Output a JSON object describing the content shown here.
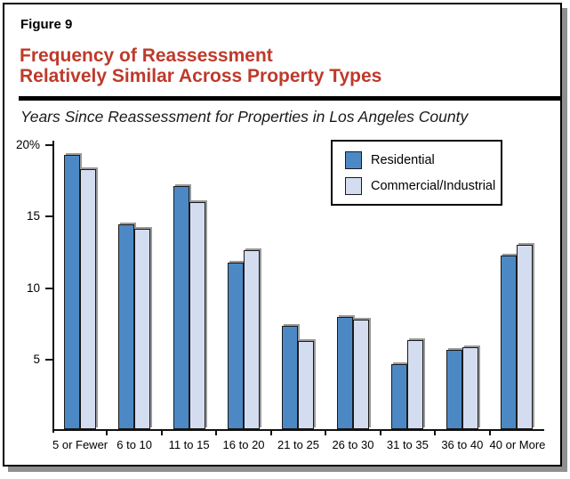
{
  "figure": {
    "label": "Figure 9",
    "title_line1": "Frequency of Reassessment",
    "title_line2": "Relatively Similar Across Property Types",
    "subtitle": "Years Since Reassessment for Properties in Los Angeles County"
  },
  "colors": {
    "title_red": "#BE3A2B",
    "residential_bar": "#4C89C4",
    "commercial_bar": "#D4DDF0",
    "bar_border": "#1a1a1a",
    "bar_shadow": "#9a9a9a",
    "frame_shadow": "#8f8f8f",
    "axis": "#111111"
  },
  "chart_data": {
    "type": "bar",
    "title": "Years Since Reassessment for Properties in Los Angeles County",
    "xlabel": "",
    "ylabel": "",
    "ylim": [
      0,
      20
    ],
    "grid": false,
    "legend_position": "top-right",
    "y_ticks": [
      {
        "value": 20,
        "label": "20%"
      },
      {
        "value": 15,
        "label": "15"
      },
      {
        "value": 10,
        "label": "10"
      },
      {
        "value": 5,
        "label": "5"
      }
    ],
    "categories": [
      "5 or Fewer",
      "6 to 10",
      "11 to 15",
      "16 to 20",
      "21 to 25",
      "26 to 30",
      "31 to 35",
      "36 to 40",
      "40 or More"
    ],
    "series": [
      {
        "name": "Residential",
        "values": [
          19.3,
          14.4,
          17.1,
          11.7,
          7.3,
          7.9,
          4.6,
          5.6,
          12.2
        ]
      },
      {
        "name": "Commercial/Industrial",
        "values": [
          18.3,
          14.1,
          16.0,
          12.6,
          6.2,
          7.7,
          6.3,
          5.8,
          13.0
        ]
      }
    ]
  }
}
